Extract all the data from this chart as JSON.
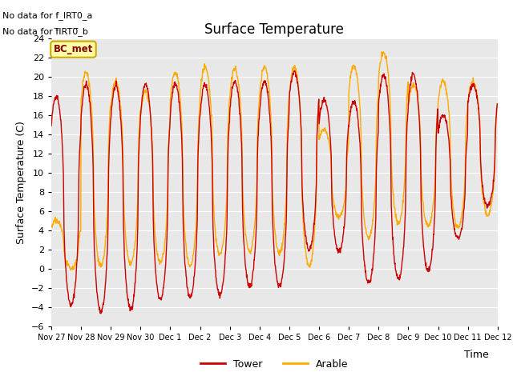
{
  "title": "Surface Temperature",
  "xlabel": "Time",
  "ylabel": "Surface Temperature (C)",
  "ylim": [
    -6,
    24
  ],
  "yticks": [
    -6,
    -4,
    -2,
    0,
    2,
    4,
    6,
    8,
    10,
    12,
    14,
    16,
    18,
    20,
    22,
    24
  ],
  "xtick_labels": [
    "Nov 27",
    "Nov 28",
    "Nov 29",
    "Nov 30",
    "Dec 1",
    "Dec 2",
    "Dec 3",
    "Dec 4",
    "Dec 5",
    "Dec 6",
    "Dec 7",
    "Dec 8",
    "Dec 9",
    "Dec 10",
    "Dec 11",
    "Dec 12"
  ],
  "no_data_line1": "No data for f_IRT0_a",
  "no_data_line2": "No data for f̅IRT0̅_b",
  "bc_met_label": "BC_met",
  "tower_color": "#cc0000",
  "arable_color": "#ffaa00",
  "plot_bg_color": "#e8e8e8",
  "fig_bg_color": "#ffffff",
  "grid_color": "#ffffff",
  "n_days": 15,
  "tower_peaks": [
    18.0,
    19.2,
    19.0,
    19.2,
    19.3,
    19.2,
    19.5,
    19.5,
    20.5,
    17.5,
    17.5,
    20.2,
    20.2,
    16.0,
    19.2
  ],
  "tower_troughs": [
    -3.8,
    -4.5,
    -4.2,
    -3.2,
    -2.9,
    -2.7,
    -1.8,
    -1.8,
    2.0,
    1.8,
    -1.5,
    -1.1,
    -0.2,
    3.2,
    6.5
  ],
  "arable_peaks": [
    5.0,
    20.5,
    19.5,
    18.5,
    20.5,
    21.0,
    20.8,
    21.0,
    21.0,
    14.5,
    21.1,
    22.5,
    19.2,
    19.5,
    19.5
  ],
  "arable_troughs": [
    0.0,
    0.3,
    0.5,
    0.7,
    0.3,
    1.5,
    1.8,
    1.6,
    0.3,
    5.4,
    3.2,
    4.8,
    4.5,
    4.3,
    5.6
  ],
  "peak_hour": 14,
  "trough_hour": 4,
  "linewidth": 1.0,
  "figsize": [
    6.4,
    4.8
  ],
  "dpi": 100
}
